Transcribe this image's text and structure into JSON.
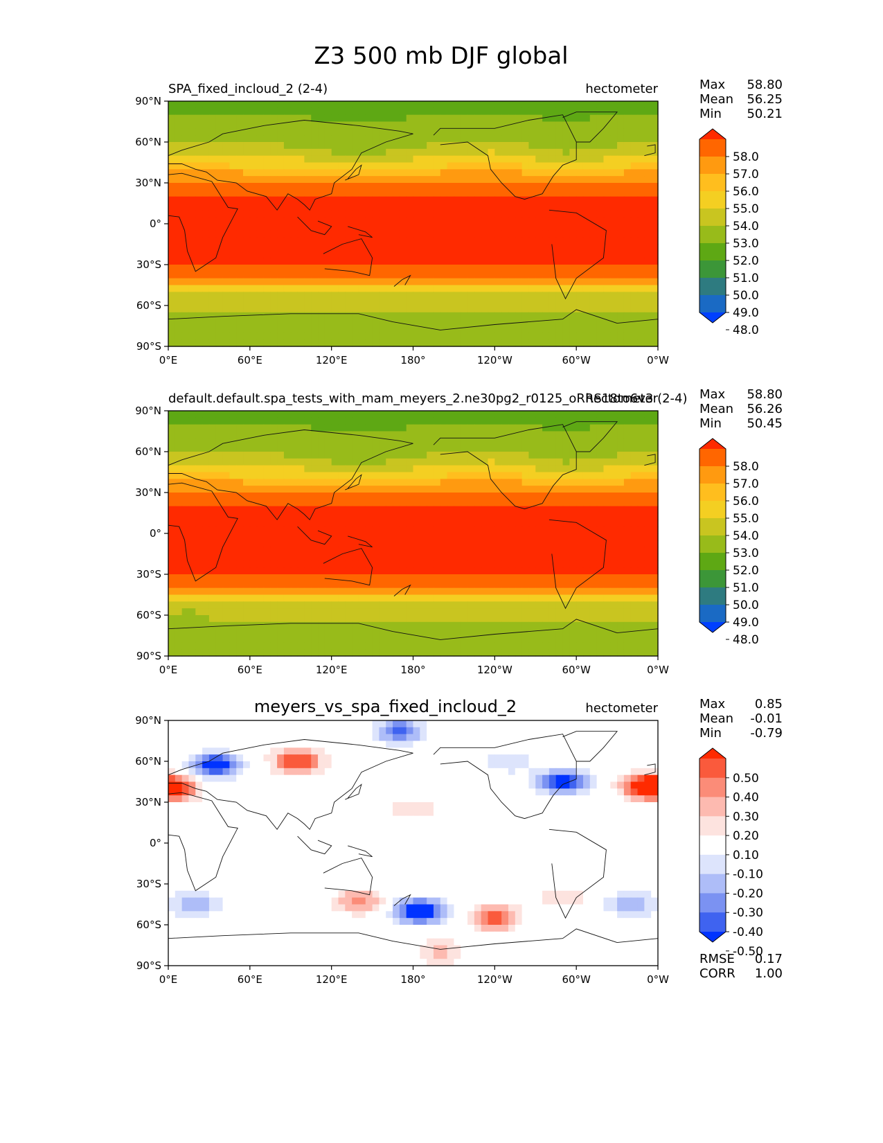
{
  "figure_title": "Z3 500 mb DJF global",
  "chart_data": [
    {
      "type": "heatmap",
      "title": "SPA_fixed_incloud_2 (2-4)",
      "units": "hectometer",
      "stats": [
        {
          "label": "Max",
          "value": "58.80"
        },
        {
          "label": "Mean",
          "value": "56.25"
        },
        {
          "label": "Min",
          "value": "50.21"
        }
      ],
      "colorbar": {
        "ticks": [
          "58.0",
          "57.0",
          "56.0",
          "55.0",
          "54.0",
          "53.0",
          "52.0",
          "51.0",
          "50.0",
          "49.0",
          "48.0"
        ],
        "colors": [
          "#ff2a00",
          "#ff6600",
          "#ff9a10",
          "#ffbe1e",
          "#f4cf22",
          "#c9c520",
          "#98bb1a",
          "#5ea814",
          "#3c9638",
          "#2e7b80",
          "#1a6ac4",
          "#0040ff"
        ]
      },
      "fill_key": "abs",
      "xlabels": [
        "0°E",
        "60°E",
        "120°E",
        "180°",
        "120°W",
        "60°W",
        "0°W"
      ],
      "ylabels": [
        "90°N",
        "60°N",
        "30°N",
        "0°",
        "30°S",
        "60°S",
        "90°S"
      ],
      "xlim": [
        0,
        360
      ],
      "ylim": [
        -90,
        90
      ]
    },
    {
      "type": "heatmap",
      "title": "default.default.spa_tests_with_mam_meyers_2.ne30pg2_r0125_oRRS18to6v3 (2-4)",
      "units": "hectometer",
      "stats": [
        {
          "label": "Max",
          "value": "58.80"
        },
        {
          "label": "Mean",
          "value": "56.26"
        },
        {
          "label": "Min",
          "value": "50.45"
        }
      ],
      "colorbar": {
        "ticks": [
          "58.0",
          "57.0",
          "56.0",
          "55.0",
          "54.0",
          "53.0",
          "52.0",
          "51.0",
          "50.0",
          "49.0",
          "48.0"
        ],
        "colors": [
          "#ff2a00",
          "#ff6600",
          "#ff9a10",
          "#ffbe1e",
          "#f4cf22",
          "#c9c520",
          "#98bb1a",
          "#5ea814",
          "#3c9638",
          "#2e7b80",
          "#1a6ac4",
          "#0040ff"
        ]
      },
      "fill_key": "abs",
      "xlabels": [
        "0°E",
        "60°E",
        "120°E",
        "180°",
        "120°W",
        "60°W",
        "0°W"
      ],
      "ylabels": [
        "90°N",
        "60°N",
        "30°N",
        "0°",
        "30°S",
        "60°S",
        "90°S"
      ],
      "xlim": [
        0,
        360
      ],
      "ylim": [
        -90,
        90
      ]
    },
    {
      "type": "heatmap",
      "title": "meyers_vs_spa_fixed_incloud_2",
      "units": "hectometer",
      "stats": [
        {
          "label": "Max",
          "value": "0.85"
        },
        {
          "label": "Mean",
          "value": "-0.01"
        },
        {
          "label": "Min",
          "value": "-0.79"
        }
      ],
      "extra_stats": [
        {
          "label": "RMSE",
          "value": "0.17"
        },
        {
          "label": "CORR",
          "value": "1.00"
        }
      ],
      "colorbar": {
        "ticks": [
          "0.50",
          "0.40",
          "0.30",
          "0.20",
          "0.10",
          "-0.10",
          "-0.20",
          "-0.30",
          "-0.40",
          "-0.50"
        ],
        "colors": [
          "#ff2a00",
          "#fa5a3c",
          "#fb8c78",
          "#fdbab0",
          "#fde3df",
          "#ffffff",
          "#dde4fc",
          "#aebdf8",
          "#7b92f2",
          "#3f63f0",
          "#0033ff"
        ]
      },
      "fill_key": "diff",
      "xlabels": [
        "0°E",
        "60°E",
        "120°E",
        "180°",
        "120°W",
        "60°W",
        "0°W"
      ],
      "ylabels": [
        "90°N",
        "60°N",
        "30°N",
        "0°",
        "30°S",
        "60°S",
        "90°S"
      ],
      "xlim": [
        0,
        360
      ],
      "ylim": [
        -90,
        90
      ]
    }
  ],
  "absolute_bands": [
    {
      "lat": 90,
      "value": 51.3
    },
    {
      "lat": 75,
      "value": 52.2
    },
    {
      "lat": 62,
      "value": 52.6
    },
    {
      "lat": 52,
      "value": 53.6
    },
    {
      "lat": 43,
      "value": 54.8
    },
    {
      "lat": 35,
      "value": 56.5
    },
    {
      "lat": 25,
      "value": 57.6
    },
    {
      "lat": 15,
      "value": 58.4
    },
    {
      "lat": -30,
      "value": 58.2
    },
    {
      "lat": -38,
      "value": 57.1
    },
    {
      "lat": -45,
      "value": 55.4
    },
    {
      "lat": -52,
      "value": 53.7
    },
    {
      "lat": -60,
      "value": 53.1
    },
    {
      "lat": -72,
      "value": 52.8
    },
    {
      "lat": -90,
      "value": 52.1
    }
  ],
  "difference_anomalies": [
    {
      "lon": 35,
      "lat": 57,
      "value": -0.6
    },
    {
      "lon": 95,
      "lat": 60,
      "value": 0.55
    },
    {
      "lon": 5,
      "lat": 40,
      "value": 0.5
    },
    {
      "lon": 290,
      "lat": 45,
      "value": -0.6
    },
    {
      "lon": 350,
      "lat": 42,
      "value": 0.55
    },
    {
      "lon": 185,
      "lat": -50,
      "value": -0.7
    },
    {
      "lon": 240,
      "lat": -55,
      "value": 0.5
    },
    {
      "lon": 140,
      "lat": -43,
      "value": 0.35
    },
    {
      "lon": 170,
      "lat": 82,
      "value": -0.45
    },
    {
      "lon": 290,
      "lat": -40,
      "value": 0.2
    },
    {
      "lon": 20,
      "lat": -45,
      "value": -0.3
    },
    {
      "lon": 340,
      "lat": -45,
      "value": -0.3
    },
    {
      "lon": 200,
      "lat": -80,
      "value": 0.25
    },
    {
      "lon": 250,
      "lat": 60,
      "value": -0.2
    },
    {
      "lon": 180,
      "lat": 25,
      "value": 0.2
    }
  ]
}
